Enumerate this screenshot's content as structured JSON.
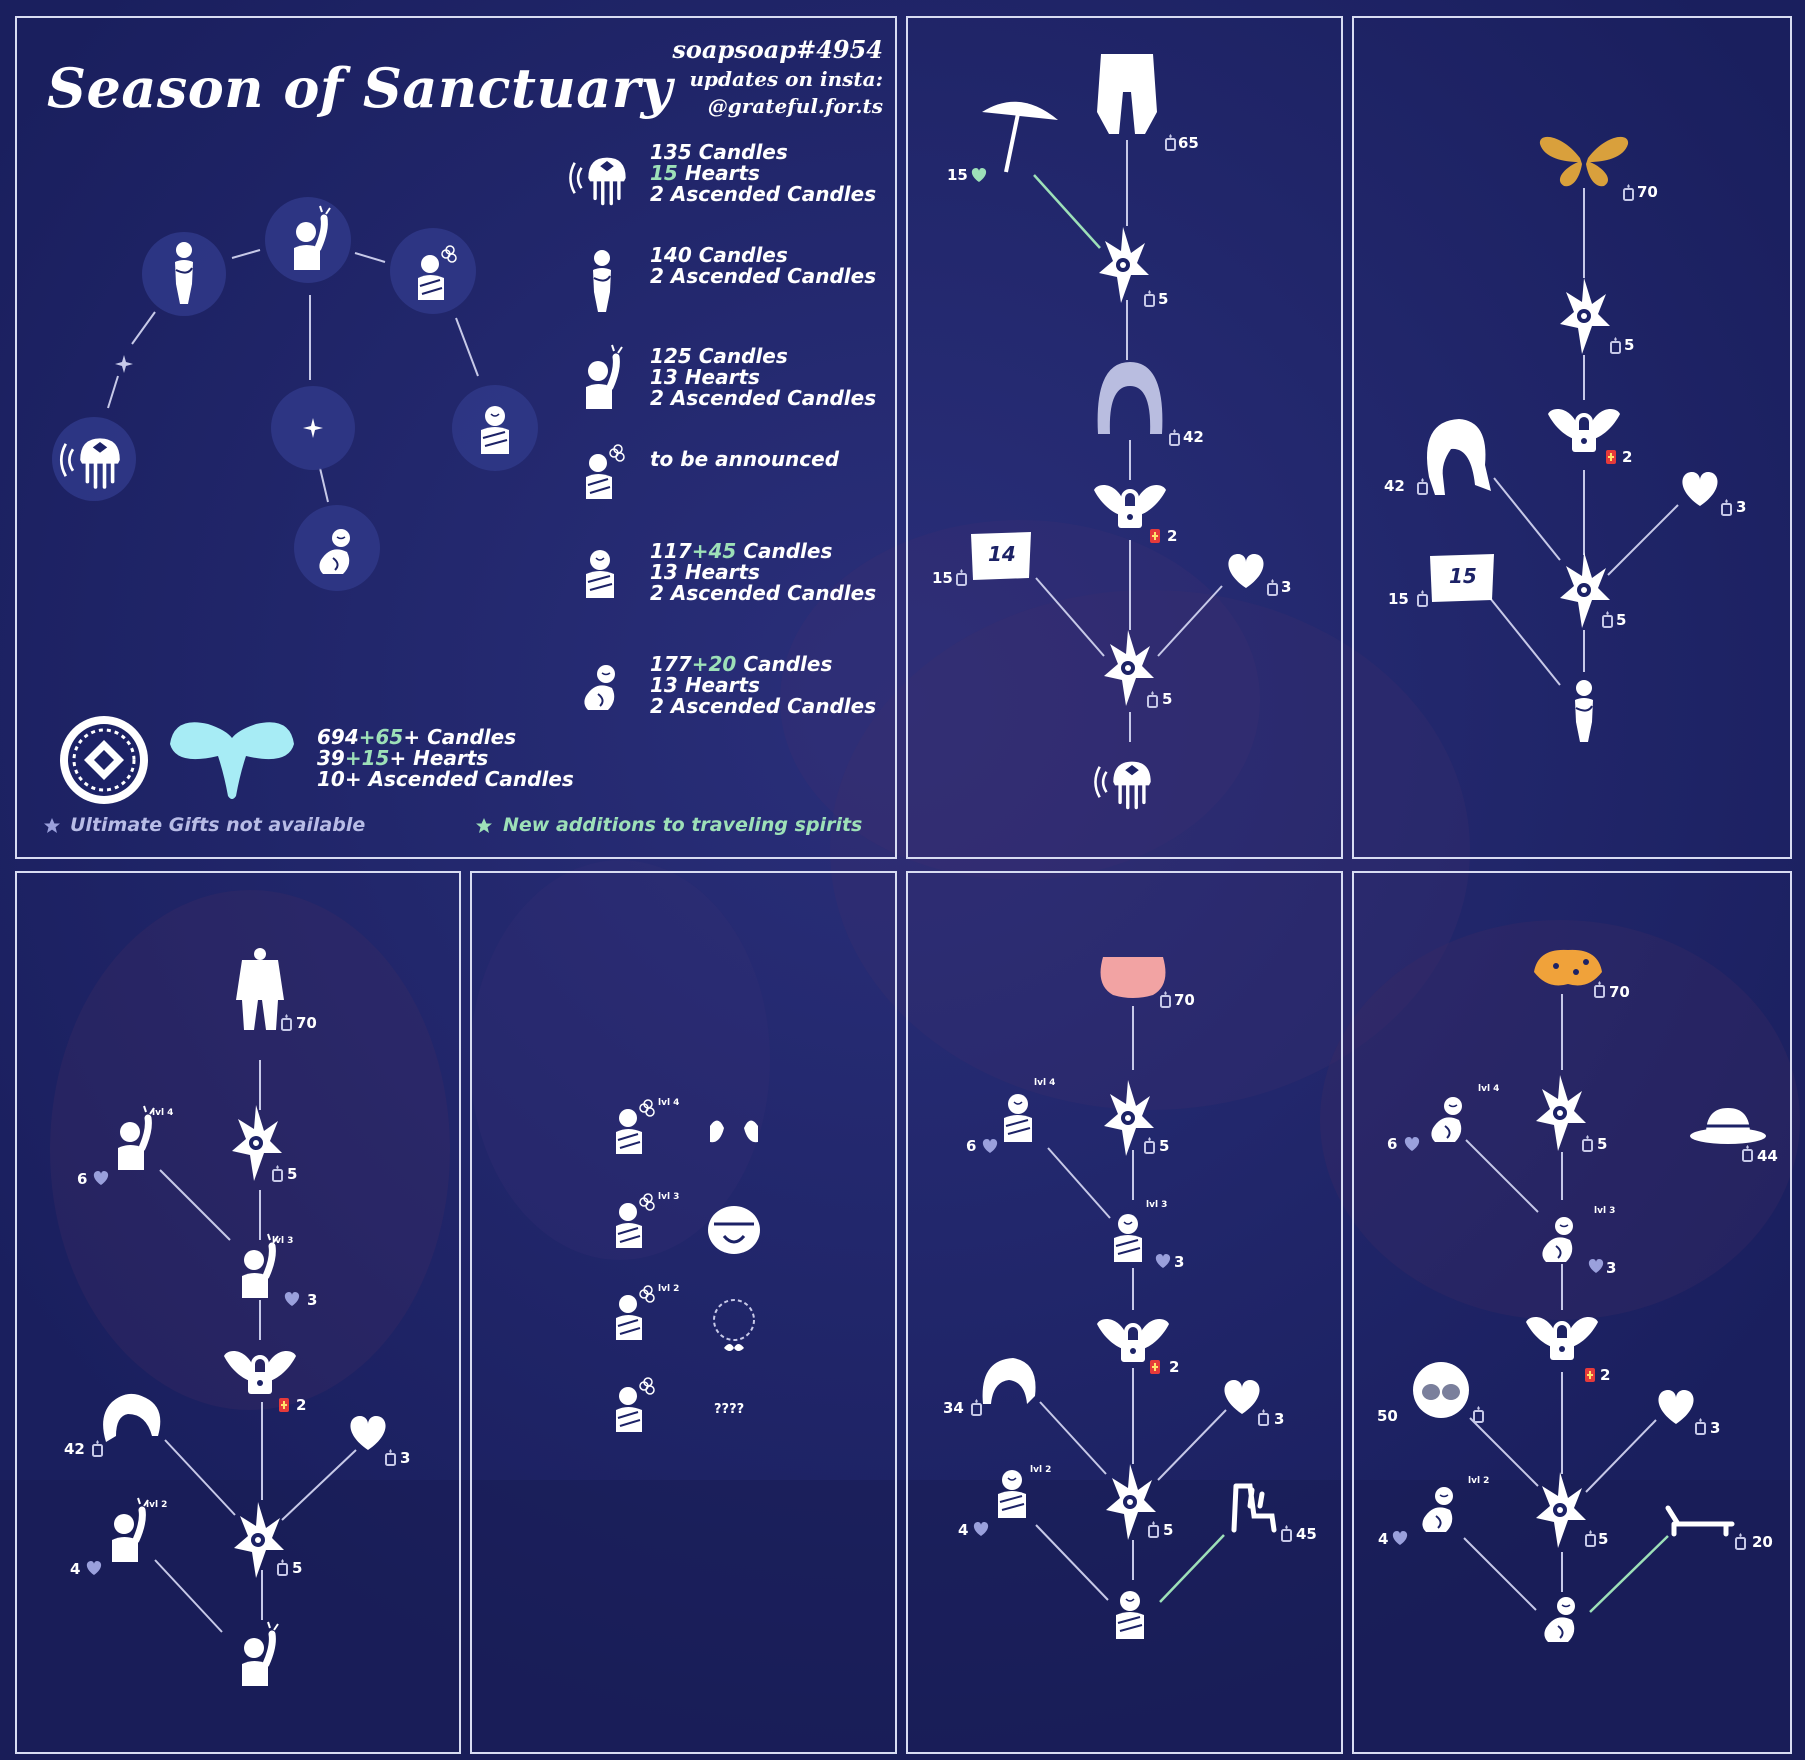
{
  "title": "Season of Sanctuary",
  "credit": {
    "handle": "soapsoap#4954",
    "line2": "updates on insta:",
    "line3": "@grateful.for.ts"
  },
  "spirit_costs": [
    {
      "base": "135",
      "extra": "",
      "unit": "Candles",
      "hearts": "15",
      "hearts_green": true,
      "hearts_unit": "Hearts",
      "ac": "2 Ascended Candles"
    },
    {
      "base": "140",
      "extra": "",
      "unit": "Candles",
      "hearts": "",
      "hearts_green": false,
      "hearts_unit": "",
      "ac": "2 Ascended Candles"
    },
    {
      "base": "125",
      "extra": "",
      "unit": "Candles",
      "hearts": "13",
      "hearts_green": false,
      "hearts_unit": "Hearts",
      "ac": "2 Ascended Candles"
    },
    {
      "tba": "to be announced"
    },
    {
      "base": "117",
      "extra": "+45",
      "unit": "Candles",
      "hearts": "13",
      "hearts_green": false,
      "hearts_unit": "Hearts",
      "ac": "2 Ascended Candles"
    },
    {
      "base": "177",
      "extra": "+20",
      "unit": "Candles",
      "hearts": "13",
      "hearts_green": false,
      "hearts_unit": "Hearts",
      "ac": "2 Ascended Candles"
    }
  ],
  "totals": {
    "candles_base": "694",
    "candles_extra": "+65",
    "candles_unit": "+ Candles",
    "hearts_base": "39",
    "hearts_extra": "+15",
    "hearts_unit": "+ Hearts",
    "ac": "10+ Ascended Candles"
  },
  "notes": {
    "ultimate": "Ultimate Gifts not available",
    "new_additions": "New additions to traveling spirits"
  },
  "colors": {
    "background": "#1c2266",
    "panel_border": "#d8dcf2",
    "highlight_green": "#9de0b8",
    "mask_cyan": "#a7ecf5",
    "butterfly_gold": "#d9a03c",
    "skirt_pink": "#f2a3a3",
    "cape_orange": "#f0a23a"
  },
  "trees": {
    "p2": {
      "umbrella_hearts": "15",
      "pants": "65",
      "star_a": "5",
      "hood": "42",
      "wing": "2",
      "ticket": "15",
      "ticket_num": "14",
      "heart": "3",
      "star_b": "5"
    },
    "p3": {
      "butterfly": "70",
      "star_a": "5",
      "wing": "2",
      "hair": "42",
      "heart": "3",
      "ticket": "15",
      "ticket_num": "15",
      "star_b": "5"
    },
    "p4": {
      "outfit": "70",
      "emote4_hearts": "6",
      "level4": "lvl 4",
      "star_a": "5",
      "level3": "lvl 3",
      "emote3_hearts": "3",
      "wing": "2",
      "hair": "42",
      "heart": "3",
      "level2": "lvl 2",
      "emote2_hearts": "4",
      "star_b": "5"
    },
    "p5": {
      "level4": "lvl 4",
      "level3": "lvl 3",
      "level2": "lvl 2",
      "unknown": "????"
    },
    "p6": {
      "skirt": "70",
      "level4": "lvl 4",
      "emote4_hearts": "6",
      "star_a": "5",
      "level3": "lvl 3",
      "emote3_hearts": "3",
      "wing": "2",
      "hair": "34",
      "heart": "3",
      "level2": "lvl 2",
      "emote2_hearts": "4",
      "star_b": "5",
      "chair": "45"
    },
    "p7": {
      "cape": "70",
      "level4": "lvl 4",
      "emote4_hearts": "6",
      "star_a": "5",
      "hat": "44",
      "level3": "lvl 3",
      "emote3_hearts": "3",
      "wing": "2",
      "glasses": "50",
      "heart": "3",
      "level2": "lvl 2",
      "emote2_hearts": "4",
      "star_b": "5",
      "lounger": "20"
    }
  }
}
